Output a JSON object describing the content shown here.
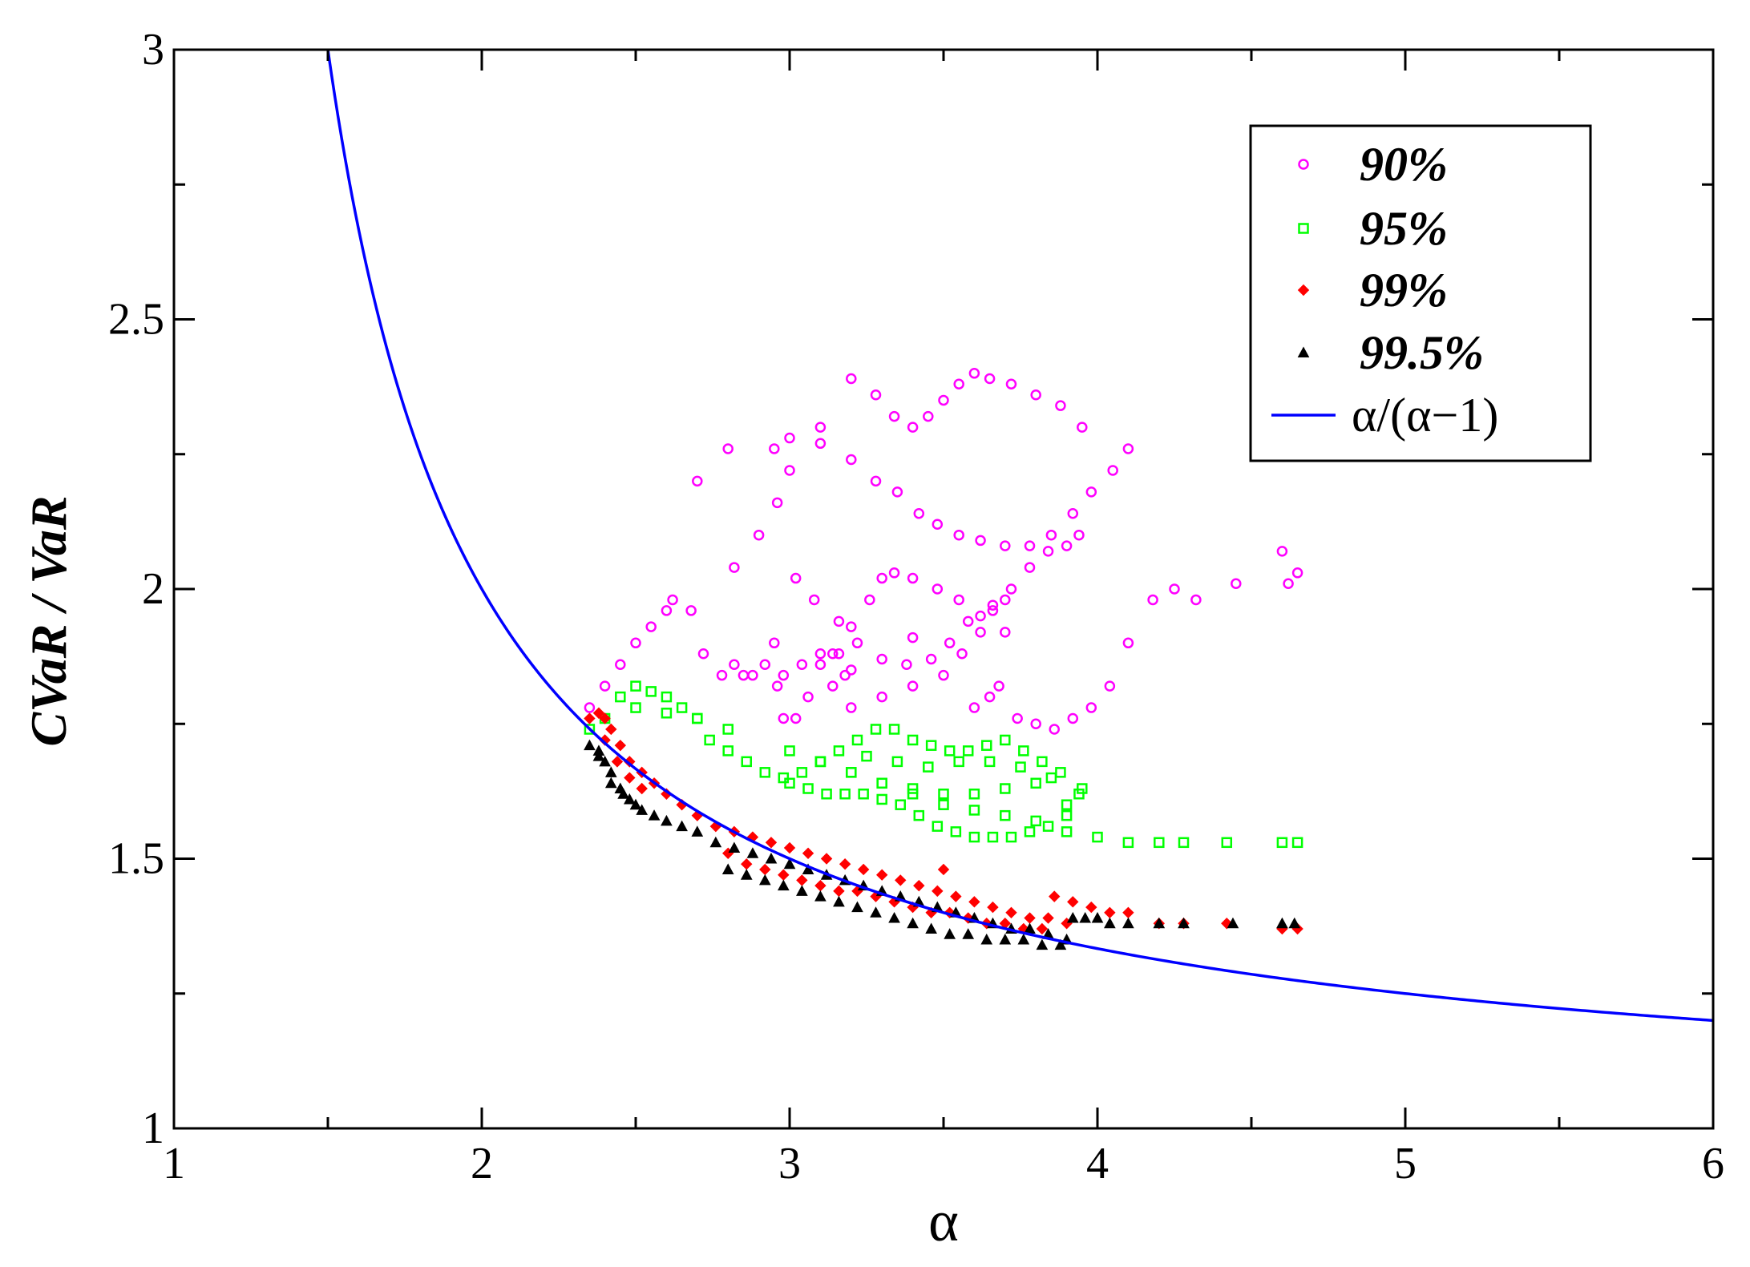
{
  "chart_data": {
    "type": "scatter",
    "title": "",
    "xlabel": "α",
    "ylabel": "CVaR / VaR",
    "xlim": [
      1,
      6
    ],
    "ylim": [
      1,
      3
    ],
    "xticks": [
      "1",
      "2",
      "3",
      "4",
      "5",
      "6"
    ],
    "yticks": [
      "1",
      "1.5",
      "2",
      "2.5",
      "3"
    ],
    "grid": false,
    "legend_position": "top-right",
    "series": [
      {
        "name": "90%",
        "marker": "circle",
        "color": "#ff00ff",
        "x": [
          2.35,
          2.4,
          2.45,
          2.5,
          2.55,
          2.6,
          2.62,
          2.68,
          2.72,
          2.78,
          2.85,
          2.92,
          2.96,
          2.98,
          3.02,
          3.06,
          3.1,
          3.14,
          3.18,
          3.1,
          3.04,
          2.98,
          2.95,
          2.88,
          2.82,
          2.95,
          3.0,
          3.1,
          3.2,
          3.28,
          3.35,
          3.42,
          3.48,
          3.55,
          3.62,
          3.7,
          3.78,
          3.85,
          3.92,
          3.98,
          4.05,
          4.1,
          3.95,
          3.88,
          3.8,
          3.72,
          3.65,
          3.6,
          3.55,
          3.5,
          3.45,
          3.4,
          3.34,
          3.28,
          3.2,
          3.1,
          3.0,
          2.96,
          2.9,
          2.82,
          3.02,
          3.08,
          3.16,
          3.22,
          3.3,
          3.38,
          3.46,
          3.52,
          3.58,
          3.66,
          3.72,
          3.78,
          3.84,
          3.9,
          3.94,
          3.7,
          3.62,
          3.55,
          3.48,
          3.4,
          3.34,
          3.3,
          3.26,
          3.2,
          3.16,
          3.14,
          3.2,
          3.3,
          3.4,
          3.5,
          3.56,
          3.62,
          3.66,
          3.7,
          3.68,
          3.65,
          3.6,
          3.74,
          3.8,
          3.86,
          3.92,
          3.98,
          4.04,
          4.1,
          4.18,
          4.25,
          4.32,
          4.45,
          4.6,
          4.65,
          4.62,
          3.4,
          3.2,
          2.8,
          2.7
        ],
        "y": [
          1.78,
          1.82,
          1.86,
          1.9,
          1.93,
          1.96,
          1.98,
          1.96,
          1.88,
          1.84,
          1.84,
          1.86,
          1.82,
          1.76,
          1.76,
          1.8,
          1.86,
          1.88,
          1.84,
          1.88,
          1.86,
          1.84,
          1.9,
          1.84,
          1.86,
          2.26,
          2.28,
          2.27,
          2.24,
          2.2,
          2.18,
          2.14,
          2.12,
          2.1,
          2.09,
          2.08,
          2.08,
          2.1,
          2.14,
          2.18,
          2.22,
          2.26,
          2.3,
          2.34,
          2.36,
          2.38,
          2.39,
          2.4,
          2.38,
          2.35,
          2.32,
          2.3,
          2.32,
          2.36,
          2.39,
          2.3,
          2.22,
          2.16,
          2.1,
          2.04,
          2.02,
          1.98,
          1.94,
          1.9,
          1.87,
          1.86,
          1.87,
          1.9,
          1.94,
          1.97,
          2.0,
          2.04,
          2.07,
          2.08,
          2.1,
          1.92,
          1.95,
          1.98,
          2.0,
          2.02,
          2.03,
          2.02,
          1.98,
          1.93,
          1.88,
          1.82,
          1.78,
          1.8,
          1.82,
          1.84,
          1.88,
          1.92,
          1.96,
          1.98,
          1.82,
          1.8,
          1.78,
          1.76,
          1.75,
          1.74,
          1.76,
          1.78,
          1.82,
          1.9,
          1.98,
          2.0,
          1.98,
          2.01,
          2.07,
          2.03,
          2.01,
          1.91,
          1.85,
          2.26,
          2.2
        ]
      },
      {
        "name": "95%",
        "marker": "square",
        "color": "#00ff00",
        "x": [
          2.35,
          2.4,
          2.45,
          2.5,
          2.55,
          2.6,
          2.65,
          2.7,
          2.74,
          2.8,
          2.86,
          2.92,
          2.98,
          3.04,
          3.1,
          3.16,
          3.22,
          3.28,
          3.34,
          3.4,
          3.46,
          3.52,
          3.58,
          3.64,
          3.7,
          3.76,
          3.82,
          3.88,
          3.94,
          3.9,
          3.84,
          3.78,
          3.72,
          3.66,
          3.6,
          3.54,
          3.48,
          3.42,
          3.36,
          3.3,
          3.24,
          3.18,
          3.12,
          3.06,
          3.0,
          3.1,
          3.2,
          3.3,
          3.4,
          3.5,
          3.6,
          3.7,
          3.8,
          3.9,
          4.0,
          4.1,
          4.2,
          4.28,
          4.42,
          4.6,
          4.65,
          3.0,
          3.1,
          3.2,
          3.3,
          3.4,
          3.5,
          3.6,
          3.7,
          3.8,
          3.9,
          2.5,
          2.6,
          2.7,
          2.8,
          3.25,
          3.35,
          3.45,
          3.55,
          3.65,
          3.75,
          3.85,
          3.95
        ],
        "y": [
          1.74,
          1.76,
          1.8,
          1.82,
          1.81,
          1.8,
          1.78,
          1.76,
          1.72,
          1.7,
          1.68,
          1.66,
          1.65,
          1.66,
          1.68,
          1.7,
          1.72,
          1.74,
          1.74,
          1.72,
          1.71,
          1.7,
          1.7,
          1.71,
          1.72,
          1.7,
          1.68,
          1.66,
          1.62,
          1.58,
          1.56,
          1.55,
          1.54,
          1.54,
          1.54,
          1.55,
          1.56,
          1.58,
          1.6,
          1.61,
          1.62,
          1.62,
          1.62,
          1.63,
          1.64,
          1.68,
          1.66,
          1.64,
          1.62,
          1.6,
          1.59,
          1.58,
          1.57,
          1.55,
          1.54,
          1.53,
          1.53,
          1.53,
          1.53,
          1.53,
          1.53,
          1.7,
          1.68,
          1.66,
          1.64,
          1.63,
          1.62,
          1.62,
          1.63,
          1.64,
          1.6,
          1.78,
          1.77,
          1.76,
          1.74,
          1.69,
          1.68,
          1.67,
          1.68,
          1.68,
          1.67,
          1.65,
          1.63
        ]
      },
      {
        "name": "99%",
        "marker": "diamond",
        "color": "#ff0000",
        "x": [
          2.35,
          2.38,
          2.4,
          2.42,
          2.45,
          2.48,
          2.52,
          2.56,
          2.6,
          2.65,
          2.7,
          2.76,
          2.82,
          2.88,
          2.94,
          3.0,
          3.06,
          3.12,
          3.18,
          3.24,
          3.3,
          3.36,
          3.42,
          3.48,
          3.54,
          3.6,
          3.66,
          3.72,
          3.78,
          3.84,
          3.9,
          2.8,
          2.86,
          2.92,
          2.98,
          3.04,
          3.1,
          3.16,
          3.22,
          3.28,
          3.34,
          3.4,
          3.46,
          3.52,
          3.58,
          3.64,
          3.7,
          3.76,
          3.82,
          3.86,
          3.92,
          3.98,
          4.04,
          4.1,
          4.2,
          4.28,
          4.42,
          4.6,
          4.65,
          2.4,
          2.44,
          2.48,
          2.52,
          3.5
        ],
        "y": [
          1.76,
          1.77,
          1.76,
          1.74,
          1.71,
          1.68,
          1.66,
          1.64,
          1.62,
          1.6,
          1.58,
          1.56,
          1.55,
          1.54,
          1.53,
          1.52,
          1.51,
          1.5,
          1.49,
          1.48,
          1.47,
          1.46,
          1.45,
          1.44,
          1.43,
          1.42,
          1.41,
          1.4,
          1.39,
          1.39,
          1.38,
          1.51,
          1.49,
          1.48,
          1.47,
          1.46,
          1.45,
          1.44,
          1.44,
          1.43,
          1.42,
          1.41,
          1.4,
          1.4,
          1.39,
          1.38,
          1.38,
          1.37,
          1.37,
          1.43,
          1.42,
          1.41,
          1.4,
          1.4,
          1.38,
          1.38,
          1.38,
          1.37,
          1.37,
          1.72,
          1.68,
          1.65,
          1.63,
          1.48
        ]
      },
      {
        "name": "99.5%",
        "marker": "triangle",
        "color": "#000000",
        "x": [
          2.35,
          2.38,
          2.4,
          2.42,
          2.45,
          2.48,
          2.52,
          2.56,
          2.6,
          2.65,
          2.7,
          2.76,
          2.82,
          2.88,
          2.94,
          3.0,
          3.06,
          3.12,
          3.18,
          3.24,
          3.3,
          3.36,
          3.42,
          3.48,
          3.54,
          3.6,
          3.66,
          3.72,
          3.78,
          3.84,
          3.9,
          2.8,
          2.86,
          2.92,
          2.98,
          3.04,
          3.1,
          3.16,
          3.22,
          3.28,
          3.34,
          3.4,
          3.46,
          3.52,
          3.58,
          3.64,
          3.7,
          3.76,
          3.82,
          3.88,
          3.92,
          3.96,
          4.0,
          4.04,
          4.1,
          4.2,
          4.28,
          4.44,
          4.6,
          4.64,
          2.38,
          2.42,
          2.46,
          2.5
        ],
        "y": [
          1.71,
          1.7,
          1.68,
          1.66,
          1.63,
          1.61,
          1.59,
          1.58,
          1.57,
          1.56,
          1.55,
          1.53,
          1.52,
          1.51,
          1.5,
          1.49,
          1.48,
          1.47,
          1.46,
          1.45,
          1.44,
          1.43,
          1.42,
          1.41,
          1.4,
          1.39,
          1.38,
          1.37,
          1.37,
          1.36,
          1.35,
          1.48,
          1.47,
          1.46,
          1.45,
          1.44,
          1.43,
          1.42,
          1.41,
          1.4,
          1.39,
          1.38,
          1.37,
          1.36,
          1.36,
          1.35,
          1.35,
          1.35,
          1.34,
          1.34,
          1.39,
          1.39,
          1.39,
          1.38,
          1.38,
          1.38,
          1.38,
          1.38,
          1.38,
          1.38,
          1.69,
          1.64,
          1.62,
          1.6
        ]
      },
      {
        "name": "α/(α−1)",
        "marker": "line",
        "color": "#0000ff",
        "formula": "alpha/(alpha-1)",
        "x_start": 1.5,
        "x_end": 6
      }
    ]
  }
}
